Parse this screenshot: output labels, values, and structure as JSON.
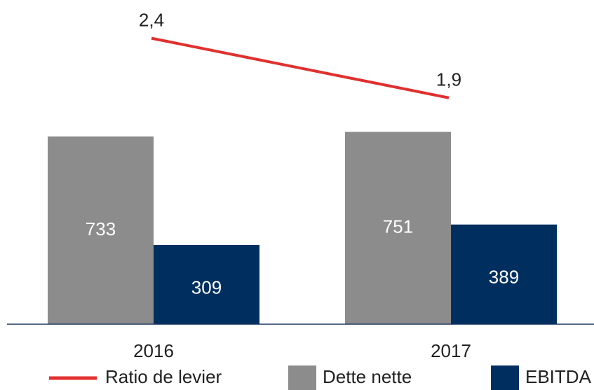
{
  "chart_data": {
    "type": "bar_line",
    "categories": [
      "2016",
      "2017"
    ],
    "series": [
      {
        "name": "Dette nette",
        "color": "#8c8c8c",
        "values": [
          733,
          751
        ]
      },
      {
        "name": "EBITDA",
        "color": "#002f5f",
        "values": [
          309,
          389
        ]
      },
      {
        "name": "Ratio de levier",
        "color": "#e0302f",
        "values": [
          2.4,
          1.9
        ],
        "value_labels": [
          "2,4",
          "1,9"
        ],
        "axis": "y2"
      }
    ],
    "ylim": [
      0,
      1200
    ],
    "y2lim": [
      0,
      2.58
    ]
  }
}
